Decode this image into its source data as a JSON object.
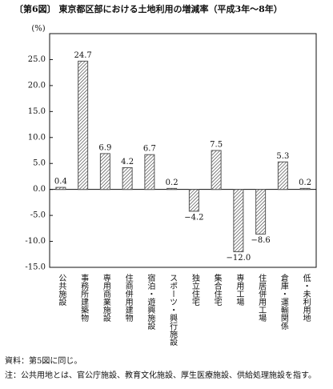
{
  "chart_data": {
    "type": "bar",
    "title": "〔第6図〕 東京都区部における土地利用の増減率（平成3年～8年）",
    "y_label": "(%)",
    "categories": [
      "公共施設",
      "事務所建築物",
      "専用商業施設",
      "住商併用建物",
      "宿泊・遊興施設",
      "スポーツ・興行施設",
      "独立住宅",
      "集合住宅",
      "専用工場",
      "住居併用工場",
      "倉庫・運輸関係",
      "低・未利用地"
    ],
    "values": [
      0.4,
      24.7,
      6.9,
      4.2,
      6.7,
      0.2,
      -4.2,
      7.5,
      -12.0,
      -8.6,
      5.3,
      0.2
    ],
    "value_labels": [
      "0.4",
      "24.7",
      "6.9",
      "4.2",
      "6.7",
      "0.2",
      "−4.2",
      "7.5",
      "−12.0",
      "−8.6",
      "5.3",
      "0.2"
    ],
    "color": "#555555",
    "ylim": [
      -15,
      30
    ],
    "yticks": [
      {
        "value": -15,
        "label": "-15.0"
      },
      {
        "value": -10,
        "label": "-10.0"
      },
      {
        "value": -5,
        "label": "-5.0"
      },
      {
        "value": 0,
        "label": "0.0"
      },
      {
        "value": 5,
        "label": "5.0"
      },
      {
        "value": 10,
        "label": "10.0"
      },
      {
        "value": 15,
        "label": "15.0"
      },
      {
        "value": 20,
        "label": "20.0"
      },
      {
        "value": 25,
        "label": "25.0"
      }
    ],
    "notes": [
      "資料：第5図に同じ。",
      "注：公共用地とは、官公庁施設、教育文化施設、厚生医療施設、供給処理施設を指す。"
    ]
  }
}
